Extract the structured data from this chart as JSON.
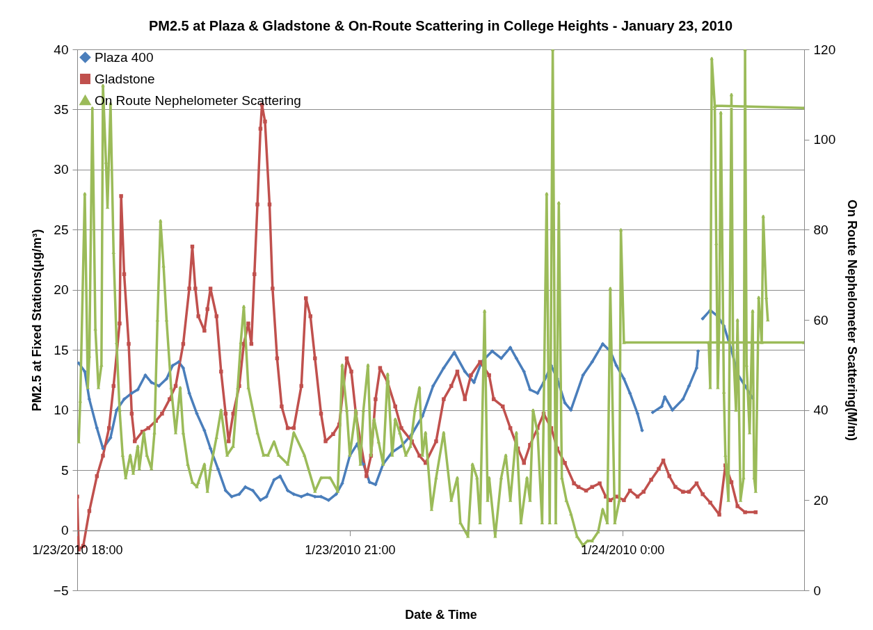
{
  "chart_data": {
    "type": "line",
    "title": "PM2.5 at Plaza & Gladstone & On-Route Scattering in College Heights - January 23, 2010",
    "xlabel": "Date & Time",
    "ylabel": "PM2.5  at Fixed Stations(μg/m³)",
    "y2label": "On Route Nephelometer Scattering(M/m)",
    "xlim": [
      "2010-01-23T18:00",
      "2010-01-24T02:00"
    ],
    "xticks": [
      {
        "value": "2010-01-23T18:00",
        "label": "1/23/2010 18:00"
      },
      {
        "value": "2010-01-23T21:00",
        "label": "1/23/2010 21:00"
      },
      {
        "value": "2010-01-24T00:00",
        "label": "1/24/2010 0:00"
      }
    ],
    "ylim": [
      -5,
      40
    ],
    "yticks": [
      -5,
      0,
      5,
      10,
      15,
      20,
      25,
      30,
      35,
      40
    ],
    "y2lim": [
      0,
      120
    ],
    "y2ticks": [
      0,
      20,
      40,
      60,
      80,
      100,
      120
    ],
    "grid": "y",
    "legend": "top left",
    "line_style": "solid",
    "series": [
      {
        "name": "Plaza 400",
        "color": "#4a7ebb",
        "marker": "diamond",
        "x": [
          "2010-01-23T18:01",
          "2010-01-23T18:05",
          "2010-01-23T18:08",
          "2010-01-23T18:13",
          "2010-01-23T18:17",
          "2010-01-23T18:22",
          "2010-01-23T18:26",
          "2010-01-23T18:31",
          "2010-01-23T18:36",
          "2010-01-23T18:40",
          "2010-01-23T18:45",
          "2010-01-23T18:49",
          "2010-01-23T18:54",
          "2010-01-23T18:59",
          "2010-01-23T19:03",
          "2010-01-23T19:07",
          "2010-01-23T19:10",
          "2010-01-23T19:14",
          "2010-01-23T19:19",
          "2010-01-23T19:24",
          "2010-01-23T19:28",
          "2010-01-23T19:33",
          "2010-01-23T19:38",
          "2010-01-23T19:42",
          "2010-01-23T19:47",
          "2010-01-23T19:51",
          "2010-01-23T19:56",
          "2010-01-23T20:01",
          "2010-01-23T20:05",
          "2010-01-23T20:10",
          "2010-01-23T20:14",
          "2010-01-23T20:19",
          "2010-01-23T20:23",
          "2010-01-23T20:28",
          "2010-01-23T20:32",
          "2010-01-23T20:37",
          "2010-01-23T20:41",
          "2010-01-23T20:46",
          "2010-01-23T20:51",
          "2010-01-23T20:55",
          "2010-01-23T21:00",
          "2010-01-23T21:05",
          "2010-01-23T21:09",
          "2010-01-23T21:13",
          "2010-01-23T21:17",
          "2010-01-23T21:22",
          "2010-01-23T21:28",
          "2010-01-23T21:34",
          "2010-01-23T21:41",
          "2010-01-23T21:48",
          "2010-01-23T21:55",
          "2010-01-23T22:02",
          "2010-01-23T22:09",
          "2010-01-23T22:16",
          "2010-01-23T22:22",
          "2010-01-23T22:27",
          "2010-01-23T22:34",
          "2010-01-23T22:40",
          "2010-01-23T22:46",
          "2010-01-23T22:50",
          "2010-01-23T22:55",
          "2010-01-23T22:59",
          "2010-01-23T23:04",
          "2010-01-23T23:08",
          "2010-01-23T23:13",
          "2010-01-23T23:17",
          "2010-01-23T23:22",
          "2010-01-23T23:26",
          "2010-01-23T23:34",
          "2010-01-23T23:40",
          "2010-01-23T23:47",
          "2010-01-23T23:52",
          "2010-01-23T23:56",
          "2010-01-24T00:01",
          "2010-01-24T00:05",
          "2010-01-24T00:10",
          "2010-01-24T00:13",
          "2010-01-24T00:15",
          "2010-01-24T00:20",
          "2010-01-24T00:26",
          "2010-01-24T00:28",
          "2010-01-24T00:33",
          "2010-01-24T00:40",
          "2010-01-24T00:44",
          "2010-01-24T00:49",
          "2010-01-24T00:50",
          "2010-01-24T00:52",
          "2010-01-24T00:53",
          "2010-01-24T00:58",
          "2010-01-24T01:03",
          "2010-01-24T01:07",
          "2010-01-24T01:12",
          "2010-01-24T01:16",
          "2010-01-24T01:21",
          "2010-01-24T01:26"
        ],
        "values": [
          13.9,
          13.2,
          10.9,
          8.5,
          6.8,
          7.7,
          10.0,
          10.9,
          11.4,
          11.7,
          12.9,
          12.3,
          12.0,
          12.6,
          13.7,
          14.0,
          13.5,
          11.4,
          9.7,
          8.3,
          6.8,
          5.1,
          3.3,
          2.8,
          3.0,
          3.6,
          3.3,
          2.5,
          2.8,
          4.2,
          4.5,
          3.3,
          3.0,
          2.8,
          3.0,
          2.8,
          2.8,
          2.5,
          3.0,
          3.9,
          6.2,
          7.2,
          5.5,
          4.0,
          3.8,
          5.5,
          6.5,
          7.0,
          8.0,
          9.5,
          12.0,
          13.5,
          14.8,
          13.2,
          12.3,
          14.0,
          14.9,
          14.3,
          15.2,
          14.3,
          13.2,
          11.7,
          11.4,
          12.3,
          13.7,
          12.6,
          10.6,
          10.0,
          12.9,
          14.0,
          15.5,
          14.9,
          13.7,
          12.6,
          11.4,
          9.7,
          8.3,
          null,
          9.8,
          10.3,
          11.1,
          10.0,
          10.9,
          12.0,
          13.5,
          14.9,
          null,
          17.6,
          18.3,
          17.8,
          17.0,
          15.0,
          13.0,
          12.0,
          11.0
        ]
      },
      {
        "name": "Gladstone",
        "color": "#c0504d",
        "marker": "square",
        "x": [
          "2010-01-23T18:00",
          "2010-01-23T18:01",
          "2010-01-23T18:04",
          "2010-01-23T18:08",
          "2010-01-23T18:13",
          "2010-01-23T18:17",
          "2010-01-23T18:21",
          "2010-01-23T18:24",
          "2010-01-23T18:28",
          "2010-01-23T18:29",
          "2010-01-23T18:31",
          "2010-01-23T18:34",
          "2010-01-23T18:36",
          "2010-01-23T18:38",
          "2010-01-23T18:43",
          "2010-01-23T18:47",
          "2010-01-23T18:52",
          "2010-01-23T18:56",
          "2010-01-23T19:01",
          "2010-01-23T19:05",
          "2010-01-23T19:10",
          "2010-01-23T19:14",
          "2010-01-23T19:16",
          "2010-01-23T19:18",
          "2010-01-23T19:20",
          "2010-01-23T19:24",
          "2010-01-23T19:26",
          "2010-01-23T19:28",
          "2010-01-23T19:32",
          "2010-01-23T19:35",
          "2010-01-23T19:38",
          "2010-01-23T19:40",
          "2010-01-23T19:43",
          "2010-01-23T19:47",
          "2010-01-23T19:50",
          "2010-01-23T19:53",
          "2010-01-23T19:55",
          "2010-01-23T19:57",
          "2010-01-23T19:59",
          "2010-01-23T20:01",
          "2010-01-23T20:02",
          "2010-01-23T20:04",
          "2010-01-23T20:07",
          "2010-01-23T20:09",
          "2010-01-23T20:12",
          "2010-01-23T20:15",
          "2010-01-23T20:19",
          "2010-01-23T20:23",
          "2010-01-23T20:28",
          "2010-01-23T20:31",
          "2010-01-23T20:34",
          "2010-01-23T20:37",
          "2010-01-23T20:41",
          "2010-01-23T20:44",
          "2010-01-23T20:49",
          "2010-01-23T20:53",
          "2010-01-23T20:58",
          "2010-01-23T21:01",
          "2010-01-23T21:04",
          "2010-01-23T21:07",
          "2010-01-23T21:11",
          "2010-01-23T21:14",
          "2010-01-23T21:17",
          "2010-01-23T21:20",
          "2010-01-23T21:25",
          "2010-01-23T21:30",
          "2010-01-23T21:34",
          "2010-01-23T21:41",
          "2010-01-23T21:46",
          "2010-01-23T21:50",
          "2010-01-23T21:57",
          "2010-01-23T22:02",
          "2010-01-23T22:07",
          "2010-01-23T22:11",
          "2010-01-23T22:16",
          "2010-01-23T22:20",
          "2010-01-23T22:26",
          "2010-01-23T22:32",
          "2010-01-23T22:35",
          "2010-01-23T22:41",
          "2010-01-23T22:46",
          "2010-01-23T22:51",
          "2010-01-23T22:55",
          "2010-01-23T22:59",
          "2010-01-23T23:04",
          "2010-01-23T23:08",
          "2010-01-23T23:13",
          "2010-01-23T23:17",
          "2010-01-23T23:22",
          "2010-01-23T23:28",
          "2010-01-23T23:31",
          "2010-01-23T23:36",
          "2010-01-23T23:40",
          "2010-01-23T23:45",
          "2010-01-23T23:49",
          "2010-01-23T23:52",
          "2010-01-23T23:56",
          "2010-01-24T00:01",
          "2010-01-24T00:05",
          "2010-01-24T00:10",
          "2010-01-24T00:14",
          "2010-01-24T00:19",
          "2010-01-24T00:24",
          "2010-01-24T00:27",
          "2010-01-24T00:31",
          "2010-01-24T00:35",
          "2010-01-24T00:40",
          "2010-01-24T00:44",
          "2010-01-24T00:49",
          "2010-01-24T00:53",
          "2010-01-24T00:58",
          "2010-01-24T01:04",
          "2010-01-24T01:08",
          "2010-01-24T01:12",
          "2010-01-24T01:16",
          "2010-01-24T01:21",
          "2010-01-24T01:28"
        ],
        "values": [
          2.8,
          -1.6,
          -1.3,
          1.6,
          4.5,
          6.2,
          8.5,
          12.0,
          17.2,
          27.8,
          21.3,
          15.5,
          9.7,
          7.4,
          8.2,
          8.5,
          9.1,
          9.7,
          10.9,
          12.0,
          15.5,
          20.1,
          23.6,
          20.1,
          17.8,
          16.6,
          18.4,
          20.1,
          17.8,
          13.2,
          9.7,
          7.4,
          9.7,
          12.0,
          15.5,
          17.2,
          15.5,
          21.3,
          27.1,
          33.4,
          35.4,
          34.0,
          27.1,
          20.1,
          14.3,
          10.3,
          8.5,
          8.5,
          12.0,
          19.3,
          17.8,
          14.3,
          9.7,
          7.4,
          8.0,
          8.8,
          14.3,
          13.2,
          9.7,
          7.4,
          4.5,
          6.2,
          10.9,
          13.5,
          12.3,
          10.3,
          8.5,
          7.4,
          6.2,
          5.6,
          7.4,
          10.9,
          12.0,
          13.2,
          10.9,
          12.9,
          14.0,
          12.9,
          10.9,
          10.3,
          8.5,
          6.8,
          5.6,
          7.1,
          8.5,
          9.7,
          8.5,
          6.8,
          5.6,
          3.9,
          3.6,
          3.3,
          3.6,
          3.9,
          2.8,
          2.5,
          2.8,
          2.5,
          3.3,
          2.8,
          3.2,
          4.2,
          5.1,
          5.8,
          4.5,
          3.6,
          3.2,
          3.2,
          3.9,
          3.0,
          2.3,
          1.3,
          5.4,
          4.0,
          2.0,
          1.5,
          1.5
        ]
      },
      {
        "name": "On Route Nephelometer Scattering",
        "color": "#9bbb59",
        "marker": "triangle",
        "axis": "y2",
        "x": [
          "2010-01-23T18:01",
          "2010-01-23T18:02",
          "2010-01-23T18:05",
          "2010-01-23T18:07",
          "2010-01-23T18:08",
          "2010-01-23T18:10",
          "2010-01-23T18:12",
          "2010-01-23T18:14",
          "2010-01-23T18:16",
          "2010-01-23T18:17",
          "2010-01-23T18:19",
          "2010-01-23T18:20",
          "2010-01-23T18:22",
          "2010-01-23T18:24",
          "2010-01-23T18:26",
          "2010-01-23T18:28",
          "2010-01-23T18:30",
          "2010-01-23T18:32",
          "2010-01-23T18:35",
          "2010-01-23T18:37",
          "2010-01-23T18:40",
          "2010-01-23T18:41",
          "2010-01-23T18:44",
          "2010-01-23T18:46",
          "2010-01-23T18:49",
          "2010-01-23T18:51",
          "2010-01-23T18:53",
          "2010-01-23T18:55",
          "2010-01-23T18:57",
          "2010-01-23T18:59",
          "2010-01-23T19:02",
          "2010-01-23T19:05",
          "2010-01-23T19:08",
          "2010-01-23T19:10",
          "2010-01-23T19:13",
          "2010-01-23T19:16",
          "2010-01-23T19:19",
          "2010-01-23T19:20",
          "2010-01-23T19:24",
          "2010-01-23T19:26",
          "2010-01-23T19:28",
          "2010-01-23T19:32",
          "2010-01-23T19:35",
          "2010-01-23T19:39",
          "2010-01-23T19:43",
          "2010-01-23T19:46",
          "2010-01-23T19:48",
          "2010-01-23T19:50",
          "2010-01-23T19:53",
          "2010-01-23T19:56",
          "2010-01-23T19:59",
          "2010-01-23T20:03",
          "2010-01-23T20:06",
          "2010-01-23T20:10",
          "2010-01-23T20:13",
          "2010-01-23T20:19",
          "2010-01-23T20:23",
          "2010-01-23T20:30",
          "2010-01-23T20:37",
          "2010-01-23T20:41",
          "2010-01-23T20:47",
          "2010-01-23T20:52",
          "2010-01-23T20:55",
          "2010-01-23T20:58",
          "2010-01-23T21:00",
          "2010-01-23T21:04",
          "2010-01-23T21:07",
          "2010-01-23T21:09",
          "2010-01-23T21:12",
          "2010-01-23T21:14",
          "2010-01-23T21:16",
          "2010-01-23T21:19",
          "2010-01-23T21:22",
          "2010-01-23T21:25",
          "2010-01-23T21:28",
          "2010-01-23T21:30",
          "2010-01-23T21:33",
          "2010-01-23T21:37",
          "2010-01-23T21:40",
          "2010-01-23T21:43",
          "2010-01-23T21:46",
          "2010-01-23T21:48",
          "2010-01-23T21:50",
          "2010-01-23T21:54",
          "2010-01-23T21:57",
          "2010-01-23T22:02",
          "2010-01-23T22:07",
          "2010-01-23T22:11",
          "2010-01-23T22:13",
          "2010-01-23T22:18",
          "2010-01-23T22:21",
          "2010-01-23T22:24",
          "2010-01-23T22:26",
          "2010-01-23T22:29",
          "2010-01-23T22:31",
          "2010-01-23T22:32",
          "2010-01-23T22:36",
          "2010-01-23T22:40",
          "2010-01-23T22:43",
          "2010-01-23T22:46",
          "2010-01-23T22:50",
          "2010-01-23T22:53",
          "2010-01-23T22:57",
          "2010-01-23T22:59",
          "2010-01-23T23:01",
          "2010-01-23T23:04",
          "2010-01-23T23:07",
          "2010-01-23T23:10",
          "2010-01-23T23:12",
          "2010-01-23T23:14",
          "2010-01-23T23:16",
          "2010-01-23T23:18",
          "2010-01-23T23:20",
          "2010-01-23T23:23",
          "2010-01-23T23:26",
          "2010-01-23T23:30",
          "2010-01-23T23:34",
          "2010-01-23T23:37",
          "2010-01-23T23:40",
          "2010-01-23T23:44",
          "2010-01-23T23:47",
          "2010-01-23T23:50",
          "2010-01-23T23:52",
          "2010-01-23T23:55",
          "2010-01-23T23:58",
          "2010-01-23T23:59",
          "2010-01-24T00:01",
          "2010-01-24T02:00",
          "2010-01-24T00:57",
          "2010-01-24T00:58",
          "2010-01-24T00:59",
          "2010-01-24T01:01",
          "2010-01-24T02:00",
          "2010-01-24T01:01",
          "2010-01-24T01:02",
          "2010-01-24T01:03",
          "2010-01-24T01:04",
          "2010-01-24T01:05",
          "2010-01-24T01:07",
          "2010-01-24T01:08",
          "2010-01-24T01:10",
          "2010-01-24T01:12",
          "2010-01-24T01:13",
          "2010-01-24T01:15",
          "2010-01-24T01:16",
          "2010-01-24T01:18",
          "2010-01-24T01:20",
          "2010-01-24T01:21",
          "2010-01-24T01:22",
          "2010-01-24T01:24",
          "2010-01-24T01:26",
          "2010-01-24T01:27",
          "2010-01-24T01:28",
          "2010-01-24T01:30",
          "2010-01-24T01:32",
          "2010-01-24T01:33",
          "2010-01-24T01:35",
          "2010-01-24T01:36"
        ],
        "values": [
          33,
          42,
          88,
          45,
          52,
          107,
          58,
          45,
          50,
          112,
          95,
          85,
          108,
          75,
          55,
          40,
          30,
          25,
          30,
          26,
          32,
          27,
          35,
          30,
          27,
          35,
          60,
          82,
          72,
          60,
          45,
          35,
          45,
          35,
          28,
          24,
          23,
          24,
          28,
          22,
          27,
          34,
          40,
          30,
          32,
          45,
          55,
          63,
          45,
          40,
          35,
          30,
          30,
          33,
          30,
          28,
          35,
          30,
          22,
          25,
          25,
          22,
          50,
          40,
          30,
          40,
          28,
          40,
          50,
          30,
          38,
          33,
          28,
          48,
          30,
          38,
          35,
          30,
          32,
          40,
          45,
          30,
          35,
          18,
          25,
          35,
          20,
          25,
          15,
          12,
          28,
          25,
          15,
          62,
          20,
          25,
          12,
          25,
          30,
          20,
          35,
          15,
          25,
          20,
          40,
          35,
          15,
          88,
          15,
          120,
          15,
          86,
          25,
          20,
          17,
          12,
          10,
          11,
          11,
          13,
          18,
          15,
          67,
          15,
          20,
          80,
          55,
          55,
          55,
          45,
          118,
          107.5,
          107,
          107.5,
          77,
          45,
          60,
          106,
          44,
          30,
          20,
          110,
          55,
          40,
          60,
          20,
          25,
          120,
          50,
          35,
          62,
          25,
          22,
          65,
          55,
          83,
          65,
          60
        ]
      }
    ]
  }
}
